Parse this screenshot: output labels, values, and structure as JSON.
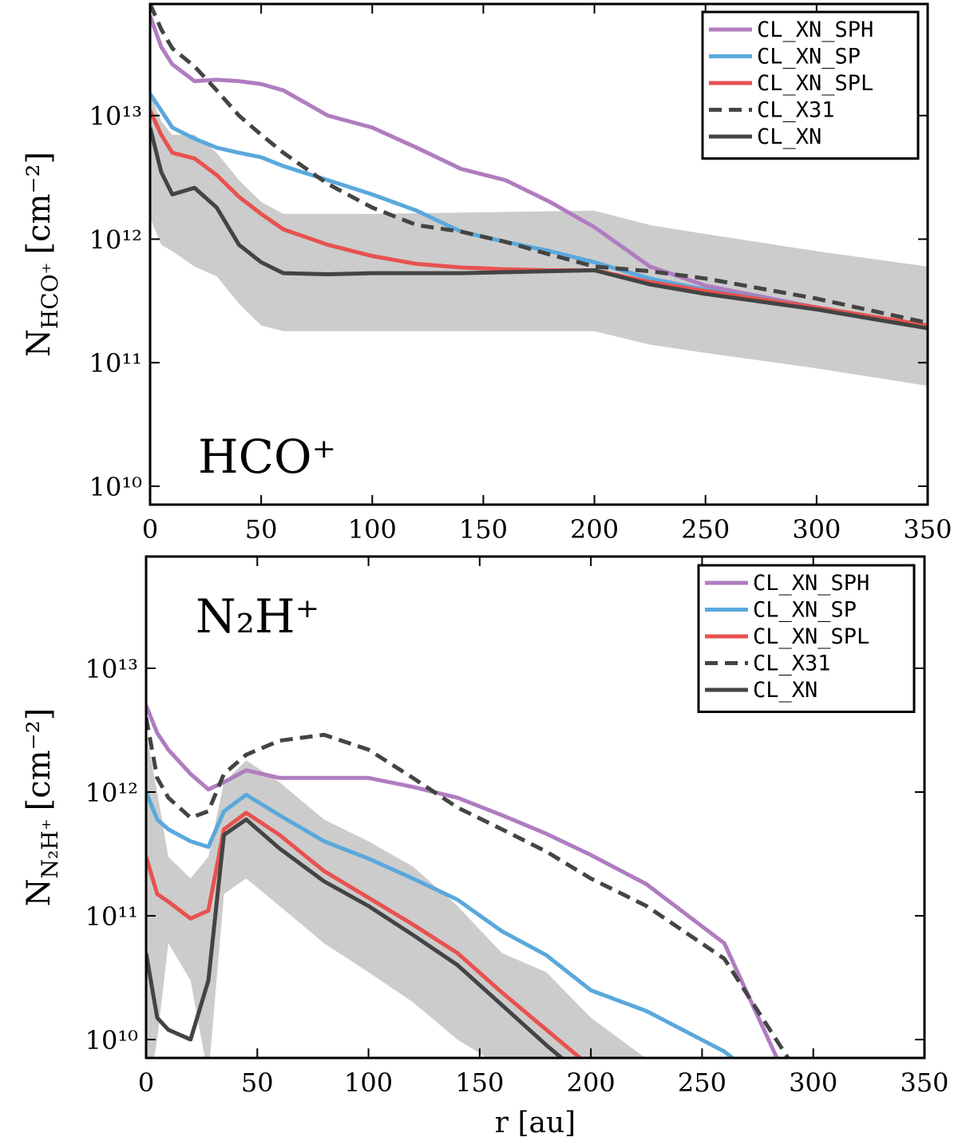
{
  "chart_data": [
    {
      "type": "line",
      "annotation": "HCO⁺",
      "ylabel": {
        "text": "N",
        "sub": "HCO⁺",
        "unit": "[cm⁻²]"
      },
      "x": [
        0,
        5,
        10,
        20,
        30,
        40,
        50,
        60,
        80,
        100,
        120,
        140,
        160,
        180,
        200,
        225,
        250,
        300,
        350
      ],
      "series": [
        {
          "name": "CL_XN_SPH",
          "color": "#b07cc0",
          "dash": false,
          "values": [
            64000000000000.0,
            36000000000000.0,
            26000000000000.0,
            19000000000000.0,
            19500000000000.0,
            19000000000000.0,
            18000000000000.0,
            16000000000000.0,
            10000000000000.0,
            8000000000000.0,
            5500000000000.0,
            3700000000000.0,
            3000000000000.0,
            2000000000000.0,
            1250000000000.0,
            600000000000.0,
            420000000000.0,
            280000000000.0,
            190000000000.0
          ]
        },
        {
          "name": "CL_XN_SP",
          "color": "#5aa8dc",
          "dash": false,
          "values": [
            15000000000000.0,
            11000000000000.0,
            8000000000000.0,
            6500000000000.0,
            5500000000000.0,
            5000000000000.0,
            4600000000000.0,
            3900000000000.0,
            3000000000000.0,
            2300000000000.0,
            1700000000000.0,
            1150000000000.0,
            950000000000.0,
            800000000000.0,
            650000000000.0,
            480000000000.0,
            390000000000.0,
            280000000000.0,
            200000000000.0
          ]
        },
        {
          "name": "CL_XN_SPL",
          "color": "#e8524f",
          "dash": false,
          "values": [
            11000000000000.0,
            7000000000000.0,
            5000000000000.0,
            4500000000000.0,
            3300000000000.0,
            2200000000000.0,
            1600000000000.0,
            1200000000000.0,
            900000000000.0,
            730000000000.0,
            630000000000.0,
            590000000000.0,
            570000000000.0,
            560000000000.0,
            560000000000.0,
            450000000000.0,
            380000000000.0,
            280000000000.0,
            200000000000.0
          ]
        },
        {
          "name": "CL_X31",
          "color": "#444444",
          "dash": true,
          "values": [
            80000000000000.0,
            50000000000000.0,
            35000000000000.0,
            25000000000000.0,
            16000000000000.0,
            10000000000000.0,
            7000000000000.0,
            5000000000000.0,
            2800000000000.0,
            1800000000000.0,
            1300000000000.0,
            1150000000000.0,
            950000000000.0,
            750000000000.0,
            600000000000.0,
            550000000000.0,
            480000000000.0,
            330000000000.0,
            210000000000.0
          ]
        },
        {
          "name": "CL_XN",
          "color": "#444444",
          "dash": false,
          "values": [
            8000000000000.0,
            3500000000000.0,
            2300000000000.0,
            2600000000000.0,
            1800000000000.0,
            900000000000.0,
            650000000000.0,
            530000000000.0,
            520000000000.0,
            530000000000.0,
            530000000000.0,
            530000000000.0,
            540000000000.0,
            550000000000.0,
            560000000000.0,
            430000000000.0,
            360000000000.0,
            270000000000.0,
            190000000000.0
          ]
        }
      ],
      "band": {
        "color": "#cccccc",
        "x": [
          0,
          5,
          10,
          20,
          30,
          40,
          50,
          60,
          100,
          150,
          200,
          225,
          250,
          300,
          350
        ],
        "upper": [
          15000000000000.0,
          9000000000000.0,
          7000000000000.0,
          7000000000000.0,
          5000000000000.0,
          3000000000000.0,
          2000000000000.0,
          1600000000000.0,
          1600000000000.0,
          1650000000000.0,
          1700000000000.0,
          1300000000000.0,
          1100000000000.0,
          800000000000.0,
          600000000000.0
        ],
        "lower": [
          1500000000000.0,
          900000000000.0,
          800000000000.0,
          600000000000.0,
          500000000000.0,
          300000000000.0,
          200000000000.0,
          180000000000.0,
          180000000000.0,
          180000000000.0,
          180000000000.0,
          140000000000.0,
          120000000000.0,
          90000000000.0,
          65000000000.0
        ]
      },
      "xlim": [
        0,
        350
      ],
      "xticks": [
        0,
        50,
        100,
        150,
        200,
        250,
        300,
        350
      ],
      "yscale": "log",
      "ylim": [
        7100000000.0,
        80000000000000.0
      ],
      "yticks": [
        {
          "value": 10000000000.0,
          "label": "10¹⁰"
        },
        {
          "value": 100000000000.0,
          "label": "10¹¹"
        },
        {
          "value": 1000000000000.0,
          "label": "10¹²"
        },
        {
          "value": 10000000000000.0,
          "label": "10¹³"
        }
      ],
      "legend": "upper right"
    },
    {
      "type": "line",
      "annotation": "N₂H⁺",
      "xlabel": "r [au]",
      "ylabel": {
        "text": "N",
        "sub": "N₂H⁺",
        "unit": "[cm⁻²]"
      },
      "x": [
        0,
        5,
        10,
        20,
        28,
        35,
        45,
        60,
        80,
        100,
        120,
        140,
        160,
        180,
        200,
        225,
        260,
        290
      ],
      "series": [
        {
          "name": "CL_XN_SPH",
          "color": "#b07cc0",
          "dash": false,
          "values": [
            5000000000000.0,
            3000000000000.0,
            2200000000000.0,
            1400000000000.0,
            1050000000000.0,
            1200000000000.0,
            1500000000000.0,
            1300000000000.0,
            1300000000000.0,
            1300000000000.0,
            1100000000000.0,
            900000000000.0,
            650000000000.0,
            460000000000.0,
            310000000000.0,
            180000000000.0,
            60000000000.0,
            4000000000.0
          ]
        },
        {
          "name": "CL_XN_SP",
          "color": "#5aa8dc",
          "dash": false,
          "values": [
            1000000000000.0,
            600000000000.0,
            500000000000.0,
            400000000000.0,
            360000000000.0,
            700000000000.0,
            950000000000.0,
            650000000000.0,
            400000000000.0,
            290000000000.0,
            200000000000.0,
            135000000000.0,
            75000000000.0,
            48000000000.0,
            25000000000.0,
            17000000000.0,
            8000000000.0,
            3000000000.0
          ]
        },
        {
          "name": "CL_XN_SPL",
          "color": "#e8524f",
          "dash": false,
          "values": [
            300000000000.0,
            150000000000.0,
            130000000000.0,
            95000000000.0,
            110000000000.0,
            500000000000.0,
            680000000000.0,
            450000000000.0,
            230000000000.0,
            140000000000.0,
            85000000000.0,
            50000000000.0,
            24000000000.0,
            12000000000.0,
            6000000000.0,
            2500000000.0,
            null,
            null
          ]
        },
        {
          "name": "CL_X31",
          "color": "#444444",
          "dash": true,
          "values": [
            4000000000000.0,
            1300000000000.0,
            900000000000.0,
            620000000000.0,
            700000000000.0,
            1400000000000.0,
            2000000000000.0,
            2600000000000.0,
            2900000000000.0,
            2200000000000.0,
            1300000000000.0,
            750000000000.0,
            500000000000.0,
            330000000000.0,
            200000000000.0,
            120000000000.0,
            45000000000.0,
            6500000000.0
          ]
        },
        {
          "name": "CL_XN",
          "color": "#444444",
          "dash": false,
          "values": [
            50000000000.0,
            15000000000.0,
            12000000000.0,
            10000000000.0,
            30000000000.0,
            450000000000.0,
            600000000000.0,
            350000000000.0,
            190000000000.0,
            120000000000.0,
            70000000000.0,
            40000000000.0,
            19000000000.0,
            9000000000.0,
            4500000000.0,
            null,
            null,
            null
          ]
        }
      ],
      "band": {
        "color": "#cccccc",
        "x": [
          0,
          5,
          10,
          20,
          28,
          35,
          45,
          60,
          80,
          100,
          120,
          140,
          160,
          180,
          200,
          225
        ],
        "upper": [
          3000000000000.0,
          1000000000000.0,
          300000000000.0,
          200000000000.0,
          300000000000.0,
          1200000000000.0,
          1800000000000.0,
          1200000000000.0,
          600000000000.0,
          400000000000.0,
          250000000000.0,
          120000000000.0,
          50000000000.0,
          35000000000.0,
          15000000000.0,
          7000000000.0
        ],
        "lower": [
          3000000000.0,
          10000000000.0,
          60000000000.0,
          30000000000.0,
          5000000000.0,
          150000000000.0,
          200000000000.0,
          120000000000.0,
          60000000000.0,
          35000000000.0,
          20000000000.0,
          10000000000.0,
          6000000000.0,
          3000000000.0,
          1500000000.0,
          1000000000.0
        ]
      },
      "xlim": [
        0,
        350
      ],
      "xticks": [
        0,
        50,
        100,
        150,
        200,
        250,
        300,
        350
      ],
      "yscale": "log",
      "ylim": [
        7100000000.0,
        80000000000000.0
      ],
      "yticks": [
        {
          "value": 10000000000.0,
          "label": "10¹⁰"
        },
        {
          "value": 100000000000.0,
          "label": "10¹¹"
        },
        {
          "value": 1000000000000.0,
          "label": "10¹²"
        },
        {
          "value": 10000000000000.0,
          "label": "10¹³"
        }
      ],
      "legend": "upper right"
    }
  ]
}
